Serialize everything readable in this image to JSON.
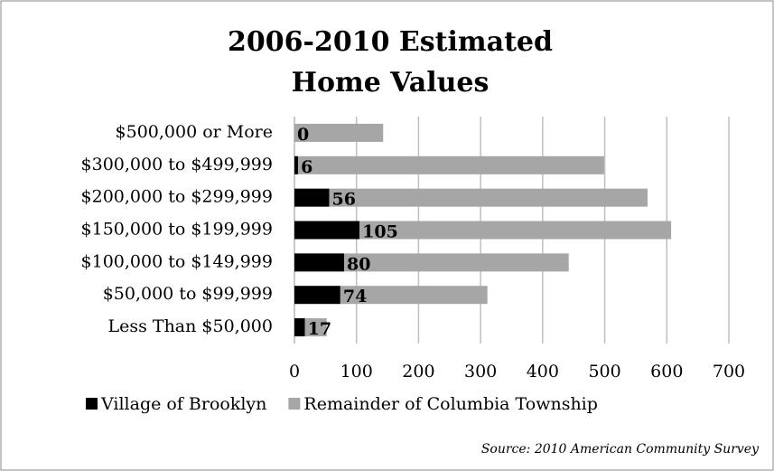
{
  "chart_data": {
    "type": "stacked-bar-horizontal",
    "title": [
      "2006-2010 Estimated",
      "Home Values"
    ],
    "categories": [
      "$500,000 or More",
      "$300,000 to $499,999",
      "$200,000 to $299,999",
      "$150,000 to $199,999",
      "$100,000 to $149,999",
      "$50,000 to $99,999",
      "Less Than $50,000"
    ],
    "series": [
      {
        "name": "Village of Brooklyn",
        "color": "#000000",
        "values": [
          0,
          6,
          56,
          105,
          80,
          74,
          17
        ]
      },
      {
        "name": "Remainder of Columbia Township",
        "color": "#a6a6a6",
        "values": [
          143,
          493,
          513,
          502,
          362,
          237,
          35
        ]
      }
    ],
    "xlim": [
      0,
      700
    ],
    "xticks": [
      0,
      100,
      200,
      300,
      400,
      500,
      600,
      700
    ],
    "grid": true,
    "legend": "bottom",
    "source": "Source: 2010 American Community Survey"
  }
}
